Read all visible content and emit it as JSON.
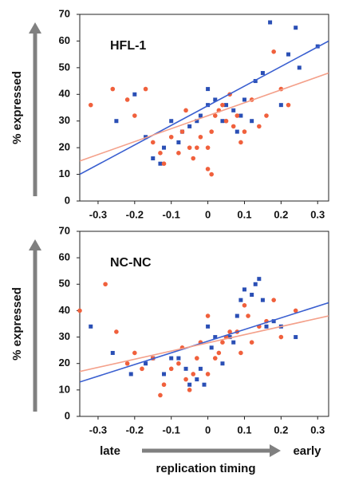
{
  "chart_data": [
    {
      "type": "scatter",
      "label": "HFL-1",
      "ylabel": "% expressed",
      "xlim": [
        -0.35,
        0.33
      ],
      "ylim": [
        0,
        70
      ],
      "xticks": [
        -0.3,
        -0.2,
        -0.1,
        0,
        0.1,
        0.2,
        0.3
      ],
      "yticks": [
        0,
        10,
        20,
        30,
        40,
        50,
        60,
        70
      ],
      "series": [
        {
          "color": "#2a4fb5",
          "marker": "square",
          "x": [
            -0.25,
            -0.2,
            -0.17,
            -0.15,
            -0.12,
            -0.1,
            -0.08,
            -0.07,
            -0.05,
            -0.03,
            -0.02,
            0,
            0,
            0.02,
            0.04,
            0.05,
            0.07,
            0.09,
            0.1,
            0.12,
            0.13,
            0.15,
            0.17,
            0.2,
            0.22,
            0.24,
            0.25,
            0.3,
            -0.13,
            0.08
          ],
          "values": [
            30,
            40,
            24,
            16,
            20,
            30,
            22,
            26,
            28,
            30,
            32,
            36,
            42,
            38,
            30,
            36,
            34,
            32,
            38,
            30,
            45,
            48,
            67,
            36,
            55,
            65,
            50,
            58,
            14,
            26
          ]
        },
        {
          "color": "#f0603c",
          "marker": "circle",
          "x": [
            -0.32,
            -0.26,
            -0.22,
            -0.2,
            -0.17,
            -0.15,
            -0.13,
            -0.12,
            -0.1,
            -0.08,
            -0.07,
            -0.05,
            -0.04,
            -0.03,
            -0.02,
            0,
            0.01,
            0,
            0.01,
            0.02,
            0.03,
            0.05,
            0.06,
            0.07,
            0.08,
            0.1,
            0.12,
            0.14,
            0.16,
            0.18,
            0.2,
            0.22,
            -0.06,
            0.04,
            0.09
          ],
          "values": [
            36,
            42,
            38,
            32,
            42,
            22,
            18,
            14,
            24,
            18,
            26,
            20,
            16,
            20,
            24,
            12,
            10,
            20,
            26,
            32,
            34,
            30,
            40,
            28,
            32,
            26,
            38,
            28,
            32,
            56,
            42,
            36,
            34,
            36,
            22
          ]
        },
        {
          "color": "#3a5fd0",
          "style": "line",
          "x": [
            -0.35,
            0.33
          ],
          "values": [
            10,
            60
          ]
        },
        {
          "color": "#f4a08a",
          "style": "line",
          "x": [
            -0.35,
            0.33
          ],
          "values": [
            15,
            48
          ]
        }
      ]
    },
    {
      "type": "scatter",
      "label": "NC-NC",
      "ylabel": "% expressed",
      "xlabel": "replication timing",
      "x_start_label": "late",
      "x_end_label": "early",
      "xlim": [
        -0.35,
        0.33
      ],
      "ylim": [
        0,
        70
      ],
      "xticks": [
        -0.3,
        -0.2,
        -0.1,
        0,
        0.1,
        0.2,
        0.3
      ],
      "yticks": [
        0,
        10,
        20,
        30,
        40,
        50,
        60,
        70
      ],
      "series": [
        {
          "color": "#2a4fb5",
          "marker": "square",
          "x": [
            -0.32,
            -0.26,
            -0.21,
            -0.17,
            -0.15,
            -0.12,
            -0.1,
            -0.08,
            -0.06,
            -0.05,
            -0.03,
            -0.01,
            0,
            0.01,
            0.02,
            0.04,
            0.06,
            0.08,
            0.09,
            0.1,
            0.12,
            0.13,
            0.14,
            0.15,
            0.16,
            0.18,
            0.2,
            0.24,
            -0.02,
            0.07
          ],
          "values": [
            34,
            24,
            16,
            20,
            22,
            16,
            22,
            22,
            18,
            12,
            14,
            12,
            34,
            26,
            30,
            20,
            30,
            38,
            44,
            48,
            46,
            50,
            52,
            44,
            34,
            36,
            34,
            30,
            18,
            28
          ]
        },
        {
          "color": "#f0603c",
          "marker": "circle",
          "x": [
            -0.35,
            -0.28,
            -0.25,
            -0.22,
            -0.2,
            -0.18,
            -0.15,
            -0.13,
            -0.12,
            -0.1,
            -0.08,
            -0.06,
            -0.05,
            -0.04,
            -0.03,
            -0.02,
            0,
            0,
            0.02,
            0.03,
            0.05,
            0.06,
            0.08,
            0.1,
            0.11,
            0.12,
            0.14,
            0.16,
            0.18,
            0.2,
            0.24,
            -0.07,
            0.04,
            0.09
          ],
          "values": [
            40,
            50,
            32,
            20,
            24,
            18,
            22,
            8,
            12,
            18,
            20,
            14,
            10,
            16,
            22,
            28,
            16,
            38,
            22,
            24,
            30,
            32,
            32,
            42,
            38,
            28,
            34,
            36,
            44,
            30,
            40,
            26,
            28,
            24
          ]
        },
        {
          "color": "#3a5fd0",
          "style": "line",
          "x": [
            -0.35,
            0.33
          ],
          "values": [
            13,
            43
          ]
        },
        {
          "color": "#f4a08a",
          "style": "line",
          "x": [
            -0.35,
            0.33
          ],
          "values": [
            17,
            38
          ]
        }
      ]
    }
  ]
}
